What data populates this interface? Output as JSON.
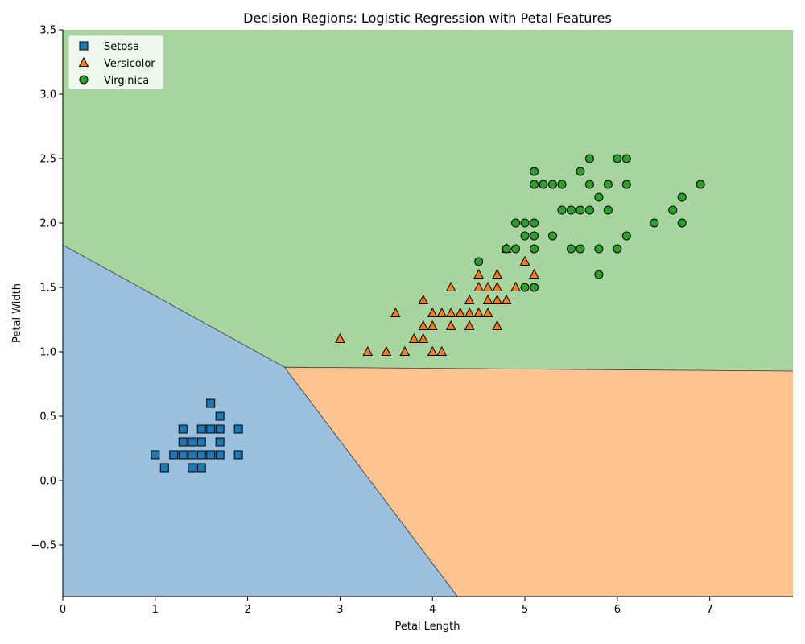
{
  "chart_data": {
    "type": "scatter",
    "title": "Decision Regions: Logistic Regression with Petal Features",
    "xlabel": "Petal Length",
    "ylabel": "Petal Width",
    "xlim": [
      0,
      7.9
    ],
    "ylim": [
      -0.9,
      3.5
    ],
    "xticks": [
      0,
      1,
      2,
      3,
      4,
      5,
      6,
      7
    ],
    "yticks": [
      -0.5,
      0.0,
      0.5,
      1.0,
      1.5,
      2.0,
      2.5,
      3.0,
      3.5
    ],
    "ytick_labels": [
      "−0.5",
      "0.0",
      "0.5",
      "1.0",
      "1.5",
      "2.0",
      "2.5",
      "3.0",
      "3.5"
    ],
    "legend_position": "upper-left",
    "regions": [
      {
        "class": "Setosa",
        "color": "#9bc0de",
        "polygon": [
          [
            0,
            1.83
          ],
          [
            2.4,
            0.88
          ],
          [
            4.27,
            -0.9
          ],
          [
            0,
            -0.9
          ]
        ]
      },
      {
        "class": "Versicolor",
        "color": "#fdc48f",
        "polygon": [
          [
            2.4,
            0.88
          ],
          [
            7.9,
            0.85
          ],
          [
            7.9,
            -0.9
          ],
          [
            4.27,
            -0.9
          ]
        ]
      },
      {
        "class": "Virginica",
        "color": "#a8d49f",
        "polygon": [
          [
            0,
            3.5
          ],
          [
            7.9,
            3.5
          ],
          [
            7.9,
            0.85
          ],
          [
            2.4,
            0.88
          ],
          [
            0,
            1.83
          ]
        ]
      }
    ],
    "series": [
      {
        "name": "Setosa",
        "marker": "square",
        "color": "#1f77b4",
        "points": [
          [
            1.0,
            0.2
          ],
          [
            1.1,
            0.1
          ],
          [
            1.2,
            0.2
          ],
          [
            1.3,
            0.2
          ],
          [
            1.3,
            0.3
          ],
          [
            1.3,
            0.4
          ],
          [
            1.4,
            0.1
          ],
          [
            1.4,
            0.2
          ],
          [
            1.4,
            0.3
          ],
          [
            1.5,
            0.1
          ],
          [
            1.5,
            0.2
          ],
          [
            1.5,
            0.3
          ],
          [
            1.5,
            0.4
          ],
          [
            1.6,
            0.2
          ],
          [
            1.6,
            0.4
          ],
          [
            1.6,
            0.6
          ],
          [
            1.7,
            0.2
          ],
          [
            1.7,
            0.3
          ],
          [
            1.7,
            0.4
          ],
          [
            1.7,
            0.5
          ],
          [
            1.9,
            0.2
          ],
          [
            1.9,
            0.4
          ]
        ]
      },
      {
        "name": "Versicolor",
        "marker": "triangle",
        "color": "#ff7f0e",
        "points": [
          [
            3.0,
            1.1
          ],
          [
            3.3,
            1.0
          ],
          [
            3.5,
            1.0
          ],
          [
            3.6,
            1.3
          ],
          [
            3.7,
            1.0
          ],
          [
            3.8,
            1.1
          ],
          [
            3.9,
            1.1
          ],
          [
            3.9,
            1.2
          ],
          [
            3.9,
            1.4
          ],
          [
            4.0,
            1.0
          ],
          [
            4.0,
            1.2
          ],
          [
            4.0,
            1.3
          ],
          [
            4.1,
            1.0
          ],
          [
            4.1,
            1.3
          ],
          [
            4.2,
            1.2
          ],
          [
            4.2,
            1.3
          ],
          [
            4.2,
            1.5
          ],
          [
            4.3,
            1.3
          ],
          [
            4.4,
            1.2
          ],
          [
            4.4,
            1.3
          ],
          [
            4.4,
            1.4
          ],
          [
            4.5,
            1.3
          ],
          [
            4.5,
            1.5
          ],
          [
            4.5,
            1.6
          ],
          [
            4.6,
            1.3
          ],
          [
            4.6,
            1.4
          ],
          [
            4.6,
            1.5
          ],
          [
            4.7,
            1.2
          ],
          [
            4.7,
            1.4
          ],
          [
            4.7,
            1.5
          ],
          [
            4.7,
            1.6
          ],
          [
            4.8,
            1.4
          ],
          [
            4.8,
            1.8
          ],
          [
            4.9,
            1.5
          ],
          [
            5.0,
            1.7
          ],
          [
            5.1,
            1.6
          ]
        ]
      },
      {
        "name": "Virginica",
        "marker": "circle",
        "color": "#2ca02c",
        "points": [
          [
            4.5,
            1.7
          ],
          [
            4.8,
            1.8
          ],
          [
            4.9,
            1.8
          ],
          [
            4.9,
            2.0
          ],
          [
            5.0,
            1.5
          ],
          [
            5.0,
            1.9
          ],
          [
            5.0,
            2.0
          ],
          [
            5.1,
            1.5
          ],
          [
            5.1,
            1.8
          ],
          [
            5.1,
            1.9
          ],
          [
            5.1,
            2.0
          ],
          [
            5.1,
            2.3
          ],
          [
            5.1,
            2.4
          ],
          [
            5.2,
            2.3
          ],
          [
            5.3,
            1.9
          ],
          [
            5.3,
            2.3
          ],
          [
            5.4,
            2.1
          ],
          [
            5.4,
            2.3
          ],
          [
            5.5,
            1.8
          ],
          [
            5.5,
            2.1
          ],
          [
            5.6,
            1.8
          ],
          [
            5.6,
            2.1
          ],
          [
            5.6,
            2.4
          ],
          [
            5.7,
            2.1
          ],
          [
            5.7,
            2.3
          ],
          [
            5.7,
            2.5
          ],
          [
            5.8,
            1.6
          ],
          [
            5.8,
            1.8
          ],
          [
            5.8,
            2.2
          ],
          [
            5.9,
            2.1
          ],
          [
            5.9,
            2.3
          ],
          [
            6.0,
            1.8
          ],
          [
            6.0,
            2.5
          ],
          [
            6.1,
            1.9
          ],
          [
            6.1,
            2.3
          ],
          [
            6.1,
            2.5
          ],
          [
            6.4,
            2.0
          ],
          [
            6.6,
            2.1
          ],
          [
            6.7,
            2.0
          ],
          [
            6.7,
            2.2
          ],
          [
            6.9,
            2.3
          ]
        ]
      }
    ]
  }
}
